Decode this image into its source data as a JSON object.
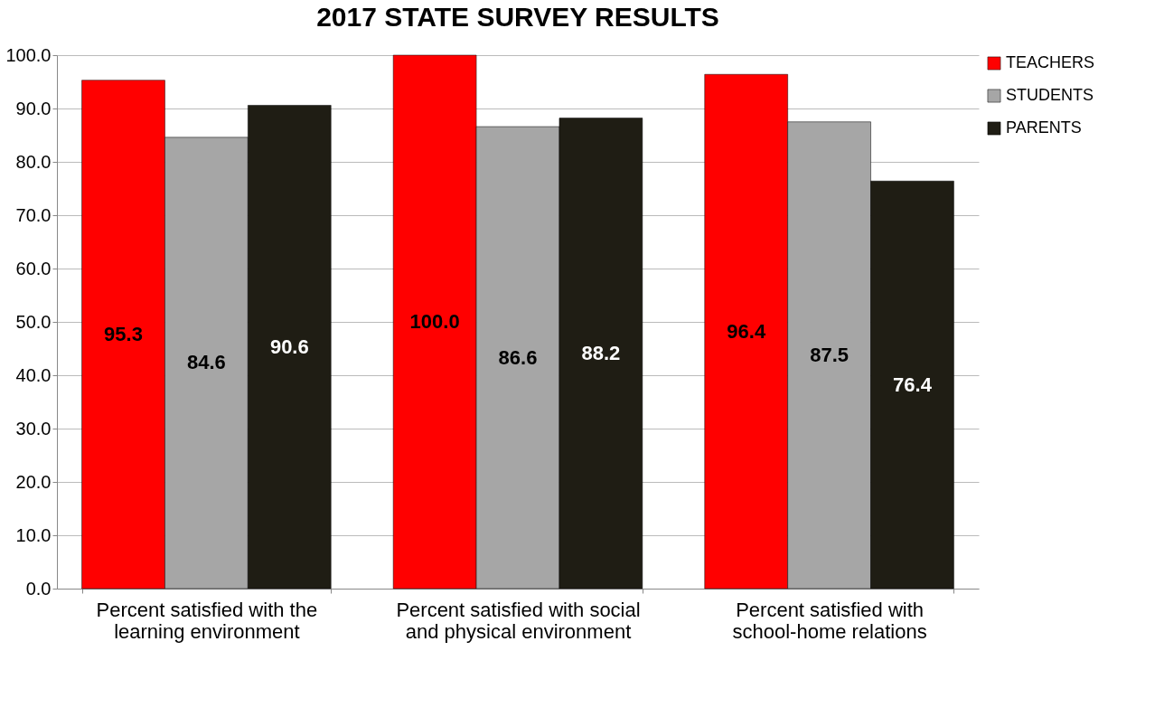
{
  "chart_data": {
    "type": "bar",
    "title": "2017 STATE SURVEY RESULTS",
    "categories": [
      "Percent satisfied with the learning environment",
      "Percent satisfied with social and physical environment",
      "Percent satisfied with school-home relations"
    ],
    "series": [
      {
        "name": "TEACHERS",
        "color": "#ff0000",
        "values": [
          95.3,
          100,
          96.4
        ],
        "value_labels": [
          "95.3",
          "100.0",
          "96.4"
        ]
      },
      {
        "name": "STUDENTS",
        "color": "#a6a6a6",
        "values": [
          84.6,
          86.6,
          87.5
        ],
        "value_labels": [
          "84.6",
          "86.6",
          "87.5"
        ]
      },
      {
        "name": "PARENTS",
        "color": "#1f1d14",
        "values": [
          90.6,
          88.2,
          76.4
        ],
        "value_labels": [
          "90.6",
          "88.2",
          "76.4"
        ]
      }
    ],
    "ylim": [
      0,
      100
    ],
    "yticks": [
      {
        "value": 0,
        "label": "0.0"
      },
      {
        "value": 10,
        "label": "10.0"
      },
      {
        "value": 20,
        "label": "20.0"
      },
      {
        "value": 30,
        "label": "30.0"
      },
      {
        "value": 40,
        "label": "40.0"
      },
      {
        "value": 50,
        "label": "50.0"
      },
      {
        "value": 60,
        "label": "60.0"
      },
      {
        "value": 70,
        "label": "70.0"
      },
      {
        "value": 80,
        "label": "80.0"
      },
      {
        "value": 90,
        "label": "90.0"
      },
      {
        "value": 100,
        "label": "100.0"
      }
    ],
    "grid": "y",
    "legend": "right"
  }
}
